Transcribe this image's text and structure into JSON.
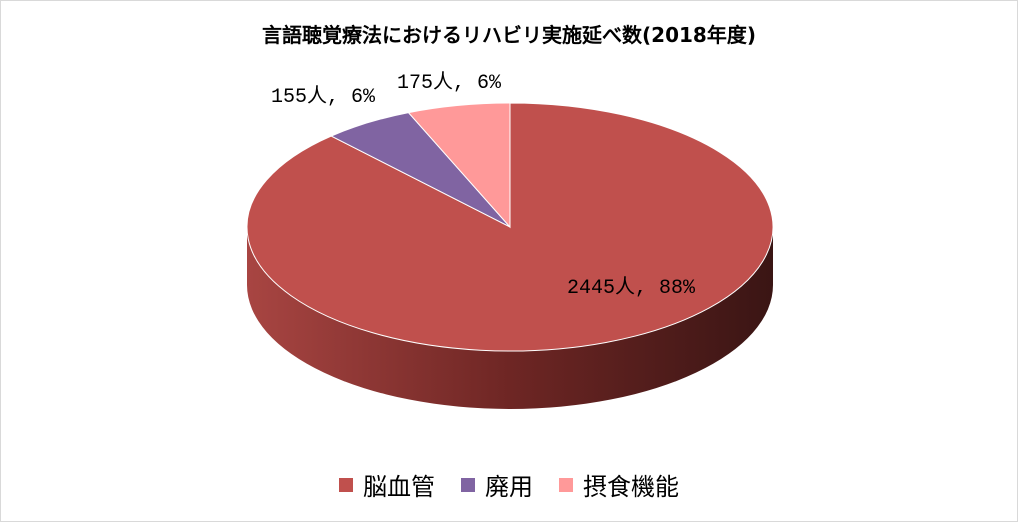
{
  "chart_data": {
    "type": "pie",
    "title": "言語聴覚療法におけるリハビリ実施延べ数(2018年度)",
    "slices": [
      {
        "label": "脳血管",
        "value": 2445,
        "percent": 88,
        "color": "#c0504d",
        "data_label": "2445人, 88%"
      },
      {
        "label": "廃用",
        "value": 155,
        "percent": 6,
        "color": "#8064a2",
        "data_label": "155人, 6%"
      },
      {
        "label": "摂食機能",
        "value": 175,
        "percent": 6,
        "color": "#ff9999",
        "data_label": "175人, 6%"
      }
    ],
    "legend_position": "bottom",
    "style": "3d-pie"
  }
}
